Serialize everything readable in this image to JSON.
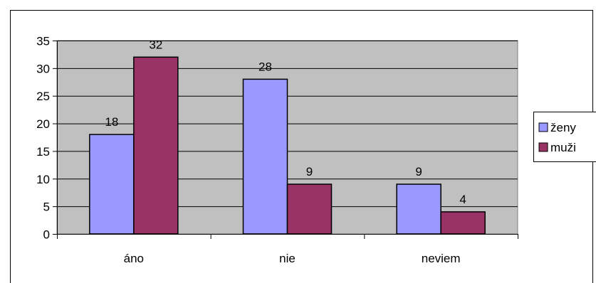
{
  "chart_data": {
    "type": "bar",
    "title": "",
    "xlabel": "",
    "ylabel": "",
    "categories": [
      "áno",
      "nie",
      "neviem"
    ],
    "series": [
      {
        "name": "ženy",
        "values": [
          18,
          28,
          9
        ],
        "color": "#9999ff"
      },
      {
        "name": "muži",
        "values": [
          32,
          9,
          4
        ],
        "color": "#993366"
      }
    ],
    "ylim": [
      0,
      35
    ],
    "yticks": [
      0,
      5,
      10,
      15,
      20,
      25,
      30,
      35
    ],
    "grid": true,
    "legend": "right",
    "plot_background": "#c0c0c0"
  }
}
